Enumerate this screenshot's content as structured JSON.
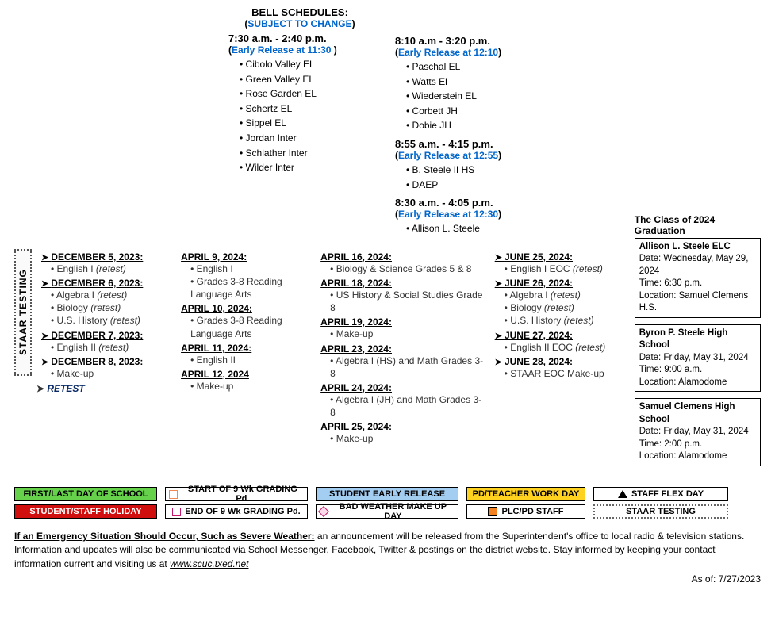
{
  "bell_schedules": {
    "heading": "BELL SCHEDULES:",
    "subject_to_change": "SUBJECT TO CHANGE",
    "groups": [
      {
        "time": "7:30 a.m. - 2:40 p.m.",
        "early": "Early Release at 11:30 ",
        "schools": [
          "Cibolo Valley EL",
          "Green Valley EL",
          "Rose Garden EL",
          "Schertz EL",
          "Sippel EL",
          "Jordan Inter",
          "Schlather Inter",
          "Wilder Inter"
        ]
      },
      {
        "time": "8:10 a.m - 3:20 p.m.",
        "early": "Early Release at 12:10",
        "schools": [
          "Paschal EL",
          "Watts El",
          "Wiederstein EL",
          "Corbett JH",
          "Dobie JH"
        ]
      },
      {
        "time": "8:55 a.m. - 4:15 p.m.",
        "early": "Early Release at 12:55",
        "schools": [
          "B. Steele II HS",
          "DAEP"
        ]
      },
      {
        "time": "8:30 a.m. - 4:05 p.m.",
        "early": "Early Release at 12:30",
        "schools": [
          "Allison L. Steele"
        ]
      }
    ]
  },
  "staar_label": "STAAR TESTING",
  "retest_label": "RETEST",
  "testing": {
    "col1": [
      {
        "date": "DECEMBER 5, 2023:",
        "arrow": true,
        "items": [
          "English I <span class=\"retest\">(retest)</span>"
        ]
      },
      {
        "date": "DECEMBER 6, 2023:",
        "arrow": true,
        "items": [
          "Algebra I <span class=\"retest\">(retest)</span>",
          "Biology <span class=\"retest\">(retest)</span>",
          "U.S. History <span class=\"retest\">(retest)</span>"
        ]
      },
      {
        "date": "DECEMBER 7, 2023:",
        "arrow": true,
        "items": [
          "English II <span class=\"retest\">(retest)</span>"
        ]
      },
      {
        "date": "DECEMBER 8, 2023:",
        "arrow": true,
        "items": [
          "Make-up"
        ]
      }
    ],
    "col2": [
      {
        "date": "APRIL 9, 2024:",
        "items": [
          "English I",
          "Grades 3-8 Reading Language Arts"
        ]
      },
      {
        "date": "APRIL 10, 2024:",
        "items": [
          "Grades 3-8 Reading Language Arts"
        ]
      },
      {
        "date": "APRIL 11, 2024:",
        "items": [
          "English II"
        ]
      },
      {
        "date": "APRIL 12, 2024",
        "items": [
          "Make-up"
        ]
      }
    ],
    "col3": [
      {
        "date": "APRIL 16, 2024:",
        "items": [
          "Biology & Science Grades 5 & 8"
        ]
      },
      {
        "date": "APRIL 18, 2024:",
        "items": [
          "US History & Social Studies Grade 8"
        ]
      },
      {
        "date": "APRIL 19, 2024:",
        "items": [
          "Make-up"
        ]
      },
      {
        "date": "APRIL 23, 2024:",
        "items": [
          "Algebra I (HS) and Math Grades 3-8"
        ]
      },
      {
        "date": "APRIL 24, 2024:",
        "items": [
          "Algebra I (JH) and Math Grades 3-8"
        ]
      },
      {
        "date": "APRIL 25, 2024:",
        "items": [
          "Make-up"
        ]
      }
    ],
    "col4": [
      {
        "date": "JUNE 25, 2024:",
        "arrow": true,
        "items": [
          "English I EOC <span class=\"retest\">(retest)</span>"
        ]
      },
      {
        "date": "JUNE 26, 2024:",
        "arrow": true,
        "items": [
          "Algebra I <span class=\"retest\">(retest)</span>",
          "Biology <span class=\"retest\">(retest)</span>",
          "U.S. History <span class=\"retest\">(retest)</span>"
        ]
      },
      {
        "date": "JUNE 27, 2024:",
        "arrow": true,
        "items": [
          "English II EOC <span class=\"retest\">(retest)</span>"
        ]
      },
      {
        "date": "JUNE 28, 2024:",
        "arrow": true,
        "items": [
          "STAAR EOC Make-up"
        ]
      }
    ]
  },
  "graduation": {
    "title": "The Class of 2024 Graduation",
    "boxes": [
      {
        "school": "Allison L. Steele ELC",
        "date": "Date: Wednesday, May 29, 2024",
        "time": "Time: 6:30 p.m.",
        "loc": "Location: Samuel Clemens H.S."
      },
      {
        "school": "Byron P. Steele High School",
        "date": "Date: Friday, May 31, 2024",
        "time": "Time: 9:00 a.m.",
        "loc": "Location: Alamodome"
      },
      {
        "school": "Samuel Clemens High School",
        "date": "Date: Friday, May 31, 2024",
        "time": "Time: 2:00 p.m.",
        "loc": "Location: Alamodome"
      }
    ]
  },
  "legend": {
    "col1": [
      "FIRST/LAST DAY OF SCHOOL",
      "STUDENT/STAFF HOLIDAY"
    ],
    "col2": [
      "START OF 9 Wk GRADING Pd.",
      "END OF 9 Wk GRADING Pd."
    ],
    "col3": [
      "STUDENT EARLY RELEASE",
      "BAD WEATHER MAKE UP DAY"
    ],
    "col4": [
      "PD/TEACHER WORK DAY",
      "PLC/PD STAFF"
    ],
    "col5": [
      "STAFF FLEX DAY",
      "STAAR TESTING"
    ]
  },
  "footer": {
    "emph": "If an Emergency Situation Should Occur, Such as Severe Weather:",
    "body": "  an announcement will be released from the Superintendent's office to local radio & television stations. Information and updates will also be communicated via School Messenger, Facebook, Twitter & postings on the district website.  Stay informed by keeping your contact information current and visiting us at ",
    "link": " www.scuc.txed.net",
    "as_of": "As of:  7/27/2023"
  }
}
